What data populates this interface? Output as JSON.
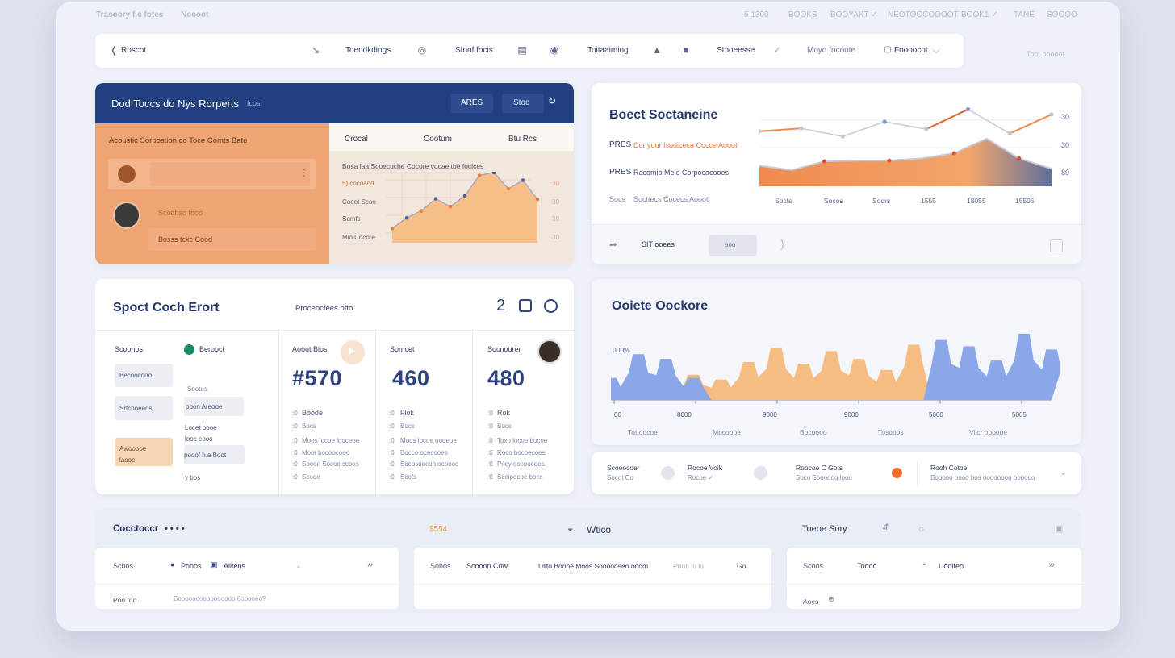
{
  "topbar": {
    "brand": "Tracoory f.c fotes",
    "brand2": "Nocoot",
    "menu": [
      "5 1300",
      "BOOKS",
      "BOOYAKT ✓",
      "NEOTOOCOOOOT",
      "BOOK1 ✓",
      "TANE",
      "SOOOO"
    ]
  },
  "toolbar": {
    "back_label": "Roscot",
    "item1": "Toeodkdings",
    "item2": "Stoof focis",
    "item3": "Toitaaiming",
    "item4": "Stooeesse",
    "item5": "Moyd focoote",
    "item6": "Foooocot",
    "right_text": "Toot ooooot"
  },
  "panel1": {
    "title": "Dod Toccs do Nys Rorperts",
    "title_suffix": "fcos",
    "btn1": "ARES",
    "btn2": "Stoc",
    "left_heading": "Acoustic Sorpostion co Toce Comts Bate",
    "row2": "Scoohso fooo",
    "row3": "Bosss tckc    Cood",
    "cols": [
      "Crocal",
      "Cootum",
      "Btu Rcs"
    ],
    "chart_title": "Bosa laa Scoecuche Cocore vocae tbe focices",
    "labels": [
      "5) cocoaod",
      "Cooot Scoo",
      "Somfs",
      "Mio Cocore"
    ],
    "ticks": [
      "30",
      "30",
      "30",
      "30"
    ]
  },
  "panel2": {
    "title": "Boect Soctaneine",
    "row1_tag": "PRES",
    "row1_text": "Cor your Isudiceca Cocce Aooot",
    "row2_tag": "PRES",
    "row2_text": "Racomio Mele Corpocacooes",
    "row3_tag": "Socs",
    "row3_text": "Socttecs Cocecs Aooot",
    "yticks": [
      "30",
      "30",
      "89"
    ],
    "xticks": [
      "Socfs",
      "Socos",
      "Soors",
      "1555",
      "18055",
      "15505"
    ],
    "footer_label": "SIT ooees",
    "footer_pill": "aoo"
  },
  "panel3": {
    "title": "Spoct Coch Erort",
    "subtitle": "Proceocfees ofto",
    "count": "2",
    "col0": {
      "heading": "Scoonos",
      "badge": "Berooct",
      "boxes": [
        "Becoocooo",
        "Srfcnoeeos",
        "Awooooe laooe"
      ],
      "items": [
        "Sootes",
        "poon Areooe",
        "Locet booe",
        "looc eoos",
        "pooof h.a Boot",
        "y bos"
      ]
    },
    "cols": [
      {
        "heading": "Aoout Bios",
        "value": "#570",
        "k1": "Boode",
        "lines": [
          "Bocs",
          "Moos locoe looceoe",
          "Moot bocoocoeo",
          "Soooo Sococ scoos",
          "Scooe"
        ]
      },
      {
        "heading": "Somcet",
        "value": "460",
        "k1": "Flok",
        "lines": [
          "Bocs",
          "Moos locoe oooeoe",
          "Bocco ocecooes",
          "Socosoocoo ocoooo",
          "Socfs"
        ]
      },
      {
        "heading": "Socnourer",
        "value": "480",
        "k1": "Rok",
        "lines": [
          "Bocs",
          "Toxo locoe bocoe",
          "Roco bocoecoes",
          "Pocy oocoocoes",
          "Scoipocoe bocs"
        ]
      }
    ]
  },
  "panel4": {
    "title": "Ooiete Oockore",
    "ylabel": "000%",
    "xticks": [
      "00",
      "8000",
      "9000",
      "9000",
      "5000",
      "5005"
    ],
    "bottom": [
      "Tot oocoe",
      "Mocoooe",
      "Bocoooo",
      "Tosooos",
      "Vilcr oooooe"
    ]
  },
  "statusbar": [
    {
      "title": "Scooocoer",
      "sub": "Socot Co"
    },
    {
      "title": "Rocoe Voik",
      "sub": "Rocoe ✓"
    },
    {
      "title": "Roocoo C Gots",
      "sub": "Soco Soooooo looo"
    },
    {
      "title": "Rooh Cotoe",
      "sub": "Booooo oooo bos oooooooo oooooo"
    }
  ],
  "bottom": {
    "label1": "Cocctoccr",
    "dots": "• • • •",
    "label2": "$554",
    "label3": "Wtico",
    "label4": "Toeoe Sory",
    "c1": {
      "a": "Scbos",
      "b": "Pooos",
      "c": "Alltens",
      "d": "Poo tdo",
      "e": "Boooooooooooooooo 6ooooeo?"
    },
    "c2": {
      "a": "Sobos",
      "b": "Scooon Cow",
      "c": "Ullto Boone Moos Soooooseo ooom",
      "d": "Pooh lo lo",
      "e": "Go"
    },
    "c3": {
      "a": "Scoos",
      "b": "Toooo",
      "c": "Uooiteo",
      "d": "Aoes"
    }
  },
  "chart_data": [
    {
      "type": "area",
      "title": "Bosa laa Scoecuche Cocore vocae tbe focices",
      "series": [
        {
          "values": [
            2,
            3.5,
            4.5,
            6.2,
            5.1,
            6.6,
            9.5,
            9.9,
            7.6,
            8.8,
            6.1
          ]
        }
      ]
    },
    {
      "type": "line",
      "title": "Boect Soctaneine",
      "xticks": [
        "Socfs",
        "Socos",
        "Soors",
        "1555",
        "18055",
        "15505"
      ],
      "series": [
        {
          "name": "upper",
          "values": [
            7.5,
            7.9,
            6.8,
            8.8,
            7.8,
            10.5,
            7.2,
            9.8
          ]
        },
        {
          "name": "area",
          "values": [
            2.8,
            2.2,
            3.4,
            3.5,
            3.5,
            3.8,
            4.5,
            6.5,
            3.8,
            2.4
          ]
        }
      ]
    },
    {
      "type": "area",
      "title": "Ooiete Oockore",
      "xticks": [
        "00",
        "8000",
        "9000",
        "9000",
        "5000",
        "5005"
      ],
      "series": [
        {
          "name": "blue",
          "values": [
            1.4,
            2.9,
            2.6,
            1.4,
            0,
            0,
            0,
            0,
            0,
            0,
            0,
            0,
            3.8,
            3.4,
            2.5,
            4.2,
            3.2
          ]
        },
        {
          "name": "orange",
          "values": [
            0,
            0,
            0,
            1.6,
            1.3,
            2.4,
            3.3,
            2.3,
            3.1,
            2.6,
            1.9,
            3.5,
            0,
            0,
            0,
            0,
            0
          ]
        }
      ]
    }
  ],
  "colors": {
    "navy": "#223f80",
    "orange": "#f08a4f",
    "orangeLight": "#f6bd83",
    "blue": "#8aa7ea"
  }
}
